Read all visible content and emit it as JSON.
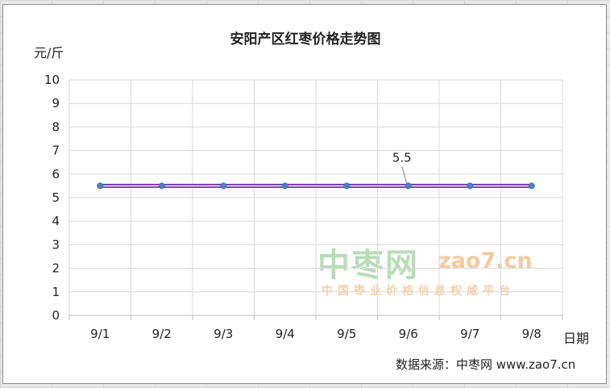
{
  "chart_data": {
    "type": "line",
    "title": "安阳产区红枣价格走势图",
    "xlabel": "日期",
    "ylabel": "元/斤",
    "categories": [
      "9/1",
      "9/2",
      "9/3",
      "9/4",
      "9/5",
      "9/6",
      "9/7",
      "9/8"
    ],
    "series": [
      {
        "values": [
          5.5,
          5.5,
          5.5,
          5.5,
          5.5,
          5.5,
          5.5,
          5.5
        ]
      }
    ],
    "ylim": [
      0,
      10
    ],
    "yticks": [
      "0",
      "1",
      "2",
      "3",
      "4",
      "5",
      "6",
      "7",
      "8",
      "9",
      "10"
    ],
    "grid": true,
    "legend": "none",
    "annotations": [
      {
        "category": "9/6",
        "text": "5.5"
      }
    ],
    "colors": {
      "line_outer": "#7030a0",
      "line_inner": "#ffffff",
      "marker": "#4f81bd",
      "grid": "#d9d9d9"
    }
  },
  "source": "数据来源：中枣网 www.zao7.cn",
  "watermark": {
    "main": "中枣网",
    "domain": "zao7.cn",
    "sub": "中国枣业价格信息权威平台"
  }
}
